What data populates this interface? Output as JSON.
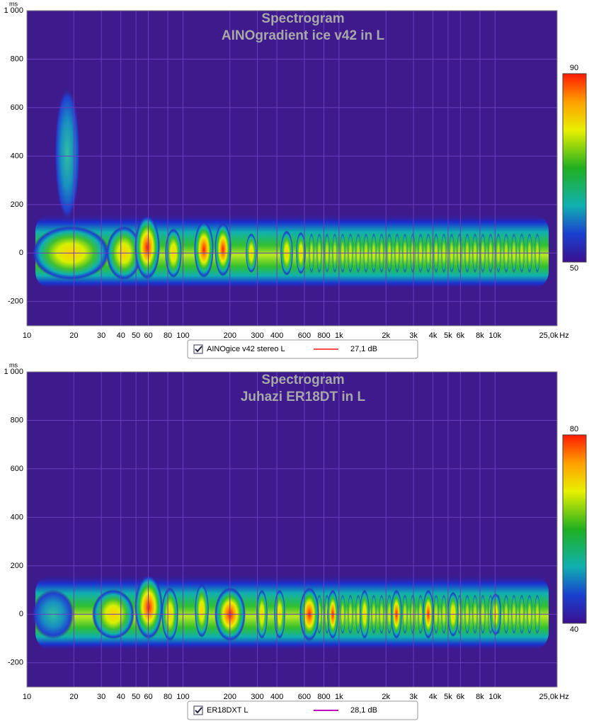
{
  "chart_data": [
    {
      "type": "spectrogram",
      "title": "Spectrogram",
      "subtitle": "AINOgradient ice v42 in L",
      "y_unit": "ms",
      "x_unit": "Hz",
      "log_x": true,
      "grid": true,
      "background": "#3e1a8c",
      "xlim": [
        10,
        25000
      ],
      "ylim": [
        -300,
        1000
      ],
      "xticks": [
        10,
        20,
        30,
        40,
        50,
        60,
        80,
        100,
        200,
        300,
        400,
        600,
        800,
        {
          "value": 1000,
          "label": "1k"
        },
        {
          "value": 2000,
          "label": "2k"
        },
        {
          "value": 3000,
          "label": "3k"
        },
        {
          "value": 4000,
          "label": "4k"
        },
        {
          "value": 5000,
          "label": "5k"
        },
        {
          "value": 6000,
          "label": "6k"
        },
        {
          "value": 8000,
          "label": "8k"
        },
        {
          "value": 10000,
          "label": "10k"
        },
        {
          "value": 25000,
          "label": "25,0k"
        }
      ],
      "yticks": [
        {
          "value": 1000,
          "label": "1 000"
        },
        800,
        600,
        400,
        200,
        0,
        -200
      ],
      "colorbar_ticks": [
        90,
        50
      ],
      "legend": {
        "name": "AINOgice v42 stereo L",
        "color": "#ff4a4a",
        "value": 27.1,
        "value_label": "27,1 dB"
      }
    },
    {
      "type": "spectrogram",
      "title": "Spectrogram",
      "subtitle": "Juhazi ER18DT in L",
      "y_unit": "ms",
      "x_unit": "Hz",
      "log_x": true,
      "grid": true,
      "background": "#3e1a8c",
      "xlim": [
        10,
        25000
      ],
      "ylim": [
        -300,
        1000
      ],
      "xticks": [
        10,
        20,
        30,
        40,
        50,
        60,
        80,
        100,
        200,
        300,
        400,
        600,
        800,
        {
          "value": 1000,
          "label": "1k"
        },
        {
          "value": 2000,
          "label": "2k"
        },
        {
          "value": 3000,
          "label": "3k"
        },
        {
          "value": 4000,
          "label": "4k"
        },
        {
          "value": 5000,
          "label": "5k"
        },
        {
          "value": 6000,
          "label": "6k"
        },
        {
          "value": 8000,
          "label": "8k"
        },
        {
          "value": 10000,
          "label": "10k"
        },
        {
          "value": 25000,
          "label": "25,0k"
        }
      ],
      "yticks": [
        {
          "value": 1000,
          "label": "1 000"
        },
        800,
        600,
        400,
        200,
        0,
        -200
      ],
      "colorbar_ticks": [
        80,
        40
      ],
      "legend": {
        "name": "ER18DXT L",
        "color": "#c000c0",
        "value": 28.1,
        "value_label": "28,1 dB"
      }
    }
  ]
}
